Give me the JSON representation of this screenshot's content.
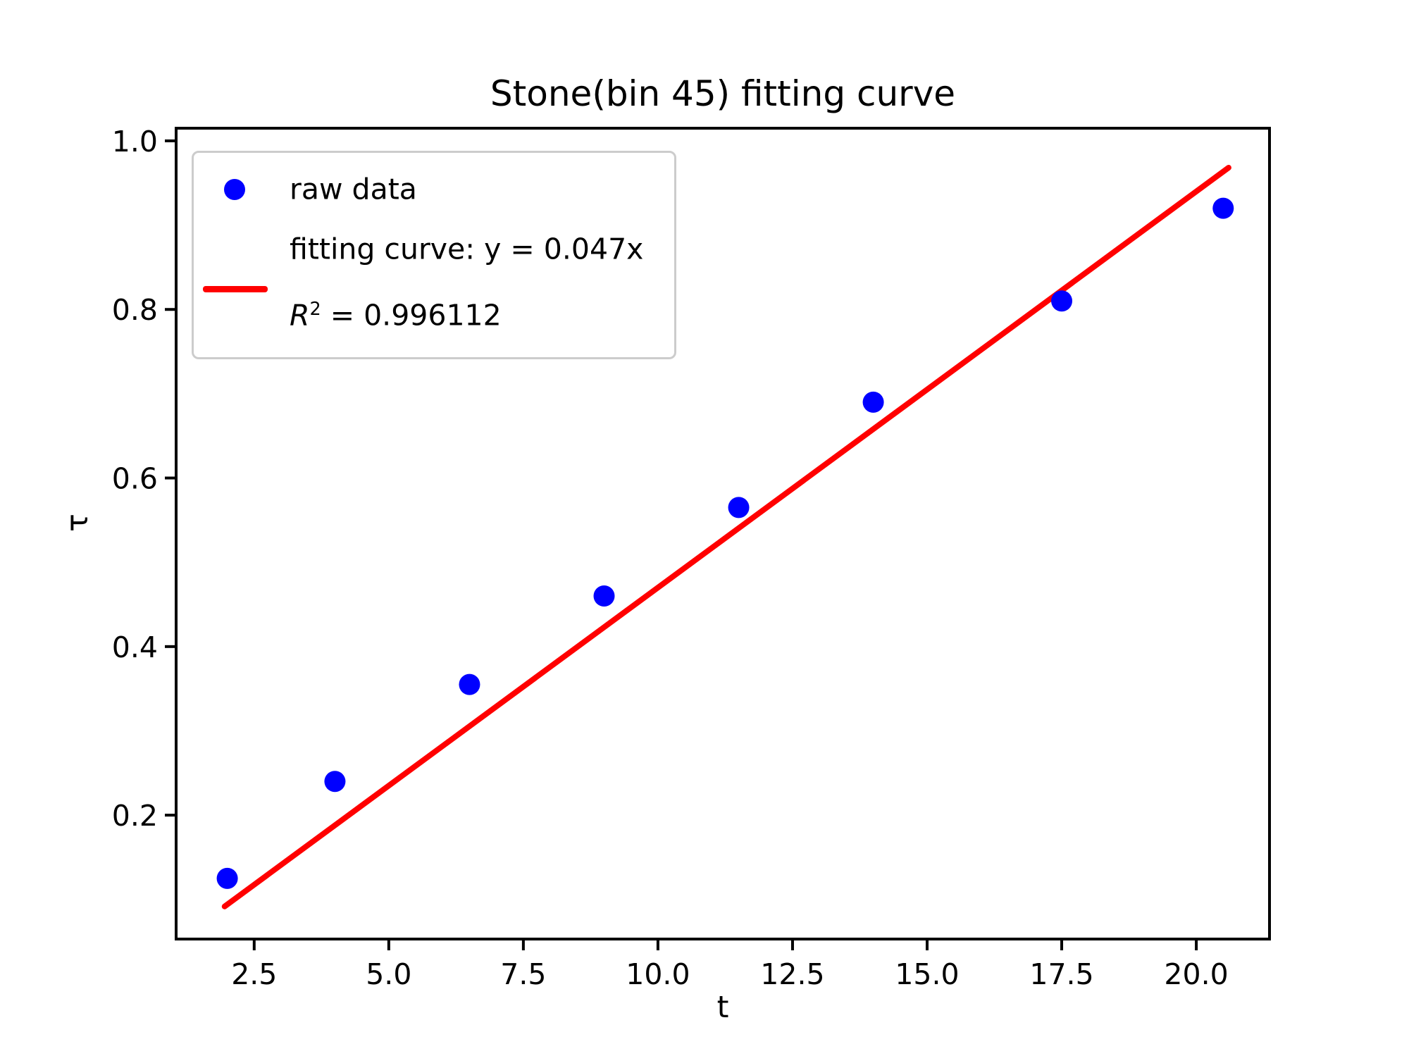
{
  "figure": {
    "title": "Stone(bin 45) fitting curve",
    "x_axis_label": "t",
    "y_axis_label": "τ"
  },
  "legend": {
    "raw_data_label": "raw data",
    "fitting_curve_label": "fitting curve: y = 0.047x",
    "r_squared_symbol": "R",
    "r_squared_exponent": "2",
    "r_squared_value_text": " = 0.996112"
  },
  "chart_data": {
    "type": "scatter",
    "title": "Stone(bin 45) fitting curve",
    "xlabel": "t",
    "ylabel": "τ",
    "xlim": [
      1.05,
      21.36
    ],
    "ylim": [
      0.053,
      1.015
    ],
    "x_tick_values": [
      2.5,
      5.0,
      7.5,
      10.0,
      12.5,
      15.0,
      17.5,
      20.0
    ],
    "x_tick_labels": [
      "2.5",
      "5.0",
      "7.5",
      "10.0",
      "12.5",
      "15.0",
      "17.5",
      "20.0"
    ],
    "y_tick_values": [
      0.2,
      0.4,
      0.6,
      0.8,
      1.0
    ],
    "y_tick_labels": [
      "0.2",
      "0.4",
      "0.6",
      "0.8",
      "1.0"
    ],
    "grid": false,
    "legend_position": "upper-left",
    "series": [
      {
        "name": "raw data",
        "type": "scatter",
        "color": "#0000ff",
        "x": [
          2.0,
          4.0,
          6.5,
          9.0,
          11.5,
          14.0,
          17.5,
          20.5
        ],
        "y": [
          0.125,
          0.24,
          0.355,
          0.46,
          0.565,
          0.69,
          0.81,
          0.92
        ]
      },
      {
        "name": "fitting curve",
        "type": "line",
        "color": "#ff0000",
        "equation": "y = 0.047x",
        "slope": 0.047,
        "intercept": 0,
        "r_squared": 0.996112,
        "x_start": 1.95,
        "x_end": 20.6
      }
    ]
  }
}
